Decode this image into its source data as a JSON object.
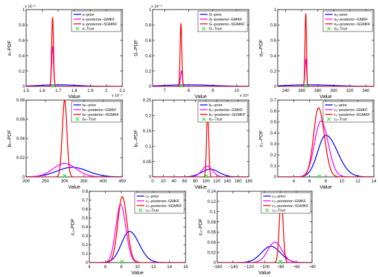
{
  "chart_data": [
    {
      "type": "line",
      "xlabel": "Value",
      "ylabel": "κ–PDF",
      "xlim": [
        1.5,
        2.1
      ],
      "ylim": [
        0,
        1.0
      ],
      "xticks": [
        "1.5",
        "1.6",
        "1.7",
        "1.8",
        "1.9",
        "2",
        "2.1"
      ],
      "xtick_values": [
        1.5,
        1.6,
        1.7,
        1.8,
        1.9,
        2.0,
        2.1
      ],
      "yticks": [
        "0",
        "0.2",
        "0.4",
        "0.6",
        "0.8",
        "1"
      ],
      "ytick_values": [
        0,
        0.2,
        0.4,
        0.6,
        0.8,
        1.0
      ],
      "x_exponent": "x 10⁻³",
      "y_exponent": "x 10⁻³",
      "x_exponent_side": "right",
      "legend": {
        "position": "top-right",
        "entries": [
          "κ–prior",
          "κ–posterior–GMKF",
          "κ–posterior–SGMKF",
          "κ–True"
        ]
      },
      "true_value": 1.67,
      "series": [
        {
          "name": "κ–prior",
          "color": "#0000ff",
          "shape": "gauss",
          "center": 1.7,
          "sigma": 0.12,
          "peak": 0.02
        },
        {
          "name": "κ–posterior–GMKF",
          "color": "#ff00ff",
          "shape": "gauss",
          "center": 1.665,
          "sigma": 0.006,
          "peak": 0.52
        },
        {
          "name": "κ–posterior–SGMKF",
          "color": "#ff0000",
          "shape": "gauss",
          "center": 1.665,
          "sigma": 0.0055,
          "peak": 0.9
        }
      ]
    },
    {
      "type": "line",
      "xlabel": "Value",
      "ylabel": "G–PDF",
      "xlim": [
        6.5,
        10.5
      ],
      "ylim": [
        0,
        1.0
      ],
      "xticks": [
        "7",
        "8",
        "9",
        "10"
      ],
      "xtick_values": [
        7,
        8,
        9,
        10
      ],
      "yticks": [
        "0",
        "0.2",
        "0.4",
        "0.6",
        "0.8",
        "1"
      ],
      "ytick_values": [
        0,
        0.2,
        0.4,
        0.6,
        0.8,
        1.0
      ],
      "x_exponent": "x 10⁴",
      "y_exponent": "x 10⁻⁴",
      "x_exponent_side": "right",
      "legend": {
        "position": "top-right",
        "entries": [
          "G–prior",
          "G–posterior–GMKF",
          "G–posterior–SGMKF",
          "G–True"
        ]
      },
      "true_value": 7.7,
      "series": [
        {
          "name": "G–prior",
          "color": "#0000ff",
          "shape": "gauss",
          "center": 8.0,
          "sigma": 1.0,
          "peak": 0.02
        },
        {
          "name": "G–posterior–GMKF",
          "color": "#ff00ff",
          "shape": "gauss",
          "center": 7.7,
          "sigma": 0.04,
          "peak": 0.2
        },
        {
          "name": "G–posterior–SGMKF",
          "color": "#ff0000",
          "shape": "gauss",
          "center": 7.68,
          "sigma": 0.035,
          "peak": 0.82
        }
      ]
    },
    {
      "type": "line",
      "xlabel": "Value",
      "ylabel": "σᵧ–PDF",
      "xlim": [
        230,
        350
      ],
      "ylim": [
        0,
        1.0
      ],
      "xticks": [
        "240",
        "260",
        "280",
        "300",
        "320",
        "340"
      ],
      "xtick_values": [
        240,
        260,
        280,
        300,
        320,
        340
      ],
      "yticks": [
        "0",
        "0.2",
        "0.4",
        "0.6",
        "0.8",
        "1"
      ],
      "ytick_values": [
        0,
        0.2,
        0.4,
        0.6,
        0.8,
        1.0
      ],
      "x_exponent": "",
      "y_exponent": "",
      "x_exponent_side": "right",
      "legend": {
        "position": "top-right",
        "entries": [
          "σᵧ–prior",
          "σᵧ–posterior–GMKF",
          "σᵧ–posterior–SGMKF",
          "σᵧ–True"
        ]
      },
      "true_value": 265,
      "series": [
        {
          "name": "σᵧ–prior",
          "color": "#0000ff",
          "shape": "gauss",
          "center": 270,
          "sigma": 30,
          "peak": 0.02
        },
        {
          "name": "σᵧ–posterior–GMKF",
          "color": "#ff00ff",
          "shape": "gauss",
          "center": 265,
          "sigma": 1.1,
          "peak": 0.35
        },
        {
          "name": "σᵧ–posterior–SGMKF",
          "color": "#ff0000",
          "shape": "gauss",
          "center": 265,
          "sigma": 0.9,
          "peak": 0.95
        }
      ]
    },
    {
      "type": "line",
      "xlabel": "Value",
      "ylabel": "bₕ–PDF",
      "xlim": [
        200,
        450
      ],
      "ylim": [
        0,
        0.08
      ],
      "xticks": [
        "200",
        "250",
        "300",
        "350",
        "400",
        "450"
      ],
      "xtick_values": [
        200,
        250,
        300,
        350,
        400,
        450
      ],
      "yticks": [
        "0",
        "0.02",
        "0.04",
        "0.06",
        "0.08"
      ],
      "ytick_values": [
        0,
        0.02,
        0.04,
        0.06,
        0.08
      ],
      "x_exponent": "",
      "y_exponent": "",
      "x_exponent_side": "right",
      "legend": {
        "position": "top-right",
        "entries": [
          "bₕ–prior",
          "bₕ–posterior–GMKF",
          "bₕ–posterior–SGMKF",
          "bₕ–True"
        ]
      },
      "true_value": 300,
      "series": [
        {
          "name": "bₕ–prior",
          "color": "#0000ff",
          "shape": "gauss",
          "center": 320,
          "sigma": 40,
          "peak": 0.01
        },
        {
          "name": "bₕ–posterior–GMKF",
          "color": "#ff00ff",
          "shape": "gauss",
          "center": 300,
          "sigma": 30,
          "peak": 0.014
        },
        {
          "name": "bₕ–posterior–SGMKF",
          "color": "#ff0000",
          "shape": "gauss",
          "center": 300,
          "sigma": 6,
          "peak": 0.08
        }
      ]
    },
    {
      "type": "line",
      "xlabel": "Value",
      "ylabel": "b₂–PDF",
      "xlim": [
        0,
        180
      ],
      "ylim": [
        0,
        0.25
      ],
      "xticks": [
        "0",
        "20",
        "40",
        "60",
        "80",
        "100",
        "120",
        "140",
        "160",
        "180"
      ],
      "xtick_values": [
        0,
        20,
        40,
        60,
        80,
        100,
        120,
        140,
        160,
        180
      ],
      "yticks": [
        "0",
        "0.05",
        "0.1",
        "0.15",
        "0.2",
        "0.25"
      ],
      "ytick_values": [
        0,
        0.05,
        0.1,
        0.15,
        0.2,
        0.25
      ],
      "x_exponent": "",
      "y_exponent": "",
      "x_exponent_side": "right",
      "legend": {
        "position": "top-right",
        "entries": [
          "b₂–prior",
          "b₂–posterior–GMKF",
          "b₂–posterior–SGMKF",
          "b₂–True"
        ]
      },
      "true_value": 100,
      "series": [
        {
          "name": "b₂–prior",
          "color": "#0000ff",
          "shape": "gauss",
          "center": 108,
          "sigma": 16,
          "peak": 0.025
        },
        {
          "name": "b₂–posterior–GMKF",
          "color": "#ff00ff",
          "shape": "gauss",
          "center": 102,
          "sigma": 10,
          "peak": 0.035
        },
        {
          "name": "b₂–posterior–SGMKF",
          "color": "#ff0000",
          "shape": "gauss",
          "center": 103,
          "sigma": 2,
          "peak": 0.215
        }
      ]
    },
    {
      "type": "line",
      "xlabel": "Value",
      "ylabel": "c₁–PDF",
      "xlim": [
        2,
        14
      ],
      "ylim": [
        0,
        0.7
      ],
      "xticks": [
        "4",
        "6",
        "8",
        "10",
        "12",
        "14"
      ],
      "xtick_values": [
        4,
        6,
        8,
        10,
        12,
        14
      ],
      "yticks": [
        "0",
        "0.1",
        "0.2",
        "0.3",
        "0.4",
        "0.5",
        "0.6",
        "0.7"
      ],
      "ytick_values": [
        0,
        0.1,
        0.2,
        0.3,
        0.4,
        0.5,
        0.6,
        0.7
      ],
      "x_exponent": "",
      "y_exponent": "",
      "x_exponent_side": "right",
      "legend": {
        "position": "top-right",
        "entries": [
          "c₁–prior",
          "c₁–posterior–GMKF",
          "c₁–posterior–SGMKF",
          "c₁–True"
        ]
      },
      "true_value": 7.2,
      "series": [
        {
          "name": "c₁–prior",
          "color": "#0000ff",
          "shape": "skew",
          "center": 8.0,
          "sigma_left": 1.0,
          "sigma_right": 1.45,
          "peak": 0.38
        },
        {
          "name": "c₁–posterior–GMKF",
          "color": "#ff00ff",
          "shape": "skew",
          "center": 7.4,
          "sigma_left": 0.8,
          "sigma_right": 0.9,
          "peak": 0.51
        },
        {
          "name": "c₁–posterior–SGMKF",
          "color": "#ff0000",
          "shape": "skew",
          "center": 7.1,
          "sigma_left": 0.62,
          "sigma_right": 0.72,
          "peak": 0.63
        }
      ]
    },
    {
      "type": "line",
      "xlabel": "Value",
      "ylabel": "c₂–PDF",
      "xlim": [
        4,
        16
      ],
      "ylim": [
        0,
        0.8
      ],
      "xticks": [
        "4",
        "6",
        "8",
        "10",
        "12",
        "14",
        "16"
      ],
      "xtick_values": [
        4,
        6,
        8,
        10,
        12,
        14,
        16
      ],
      "yticks": [
        "0",
        "0.1",
        "0.2",
        "0.3",
        "0.4",
        "0.5",
        "0.6",
        "0.7",
        "0.8"
      ],
      "ytick_values": [
        0,
        0.1,
        0.2,
        0.3,
        0.4,
        0.5,
        0.6,
        0.7,
        0.8
      ],
      "x_exponent": "",
      "y_exponent": "",
      "x_exponent_side": "right",
      "legend": {
        "position": "top-right",
        "entries": [
          "c₂–prior",
          "c₂–posterior–GMKF",
          "c₂–posterior–SGMKF",
          "c₂–True"
        ]
      },
      "true_value": 8.1,
      "series": [
        {
          "name": "c₂–prior",
          "color": "#0000ff",
          "shape": "skew",
          "center": 9.0,
          "sigma_left": 1.0,
          "sigma_right": 1.2,
          "peak": 0.35
        },
        {
          "name": "c₂–posterior–GMKF",
          "color": "#ff00ff",
          "shape": "skew",
          "center": 7.9,
          "sigma_left": 0.6,
          "sigma_right": 0.65,
          "peak": 0.65
        },
        {
          "name": "c₂–posterior–SGMKF",
          "color": "#ff0000",
          "shape": "skew",
          "center": 8.1,
          "sigma_left": 0.55,
          "sigma_right": 0.6,
          "peak": 0.74
        }
      ]
    },
    {
      "type": "line",
      "xlabel": "Value",
      "ylabel": "c₃–PDF",
      "xlim": [
        -160,
        -40
      ],
      "ylim": [
        0,
        0.14
      ],
      "xticks": [
        "−160",
        "−140",
        "−120",
        "−100",
        "−80",
        "−60",
        "−40"
      ],
      "xtick_values": [
        -160,
        -140,
        -120,
        -100,
        -80,
        -60,
        -40
      ],
      "yticks": [
        "0",
        "0.02",
        "0.04",
        "0.06",
        "0.08",
        "0.1",
        "0.12",
        "0.14"
      ],
      "ytick_values": [
        0,
        0.02,
        0.04,
        0.06,
        0.08,
        0.1,
        0.12,
        0.14
      ],
      "x_exponent": "",
      "y_exponent": "",
      "x_exponent_side": "right",
      "legend": {
        "position": "top-right",
        "entries": [
          "c₃–prior",
          "c₃–posterior–GMKF",
          "c₃–posterior–SGMKF",
          "c₃–True"
        ]
      },
      "true_value": -80,
      "series": [
        {
          "name": "c₃–prior",
          "color": "#0000ff",
          "shape": "gauss",
          "center": -92,
          "sigma": 12,
          "peak": 0.032
        },
        {
          "name": "c₃–posterior–GMKF",
          "color": "#ff00ff",
          "shape": "gauss",
          "center": -87,
          "sigma": 9,
          "peak": 0.04
        },
        {
          "name": "c₃–posterior–SGMKF",
          "color": "#ff0000",
          "shape": "gauss",
          "center": -79,
          "sigma": 2.4,
          "peak": 0.13
        }
      ]
    }
  ]
}
